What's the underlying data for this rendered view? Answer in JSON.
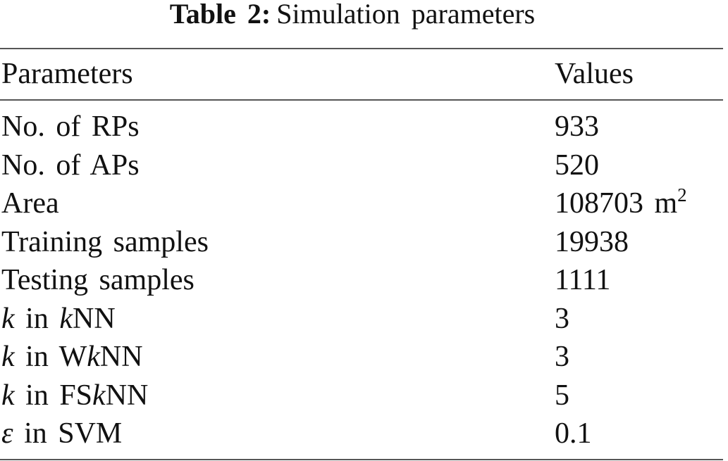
{
  "header": {
    "label": "Table 2:",
    "title": "Simulation parameters"
  },
  "table": {
    "columns": [
      "Parameters",
      "Values"
    ],
    "rows": [
      [
        "No. of RPs",
        933
      ],
      [
        "No. of APs",
        520
      ],
      [
        "Area",
        [
          {
            "text": "108703 m"
          },
          {
            "text": "2",
            "sup": true
          }
        ]
      ],
      [
        "Training samples",
        19938
      ],
      [
        "Testing samples",
        1111
      ],
      [
        [
          {
            "text": "k",
            "italic": true
          },
          {
            "text": " in "
          },
          {
            "text": "k",
            "italic": true
          },
          {
            "text": "NN"
          }
        ],
        3
      ],
      [
        [
          {
            "text": "k",
            "italic": true
          },
          {
            "text": " in W"
          },
          {
            "text": "k",
            "italic": true
          },
          {
            "text": "NN"
          }
        ],
        3
      ],
      [
        [
          {
            "text": "k",
            "italic": true
          },
          {
            "text": " in FS"
          },
          {
            "text": "k",
            "italic": true
          },
          {
            "text": "NN"
          }
        ],
        5
      ],
      [
        [
          {
            "text": "ε",
            "italic": true
          },
          {
            "text": " in SVM"
          }
        ],
        0.1
      ]
    ]
  }
}
